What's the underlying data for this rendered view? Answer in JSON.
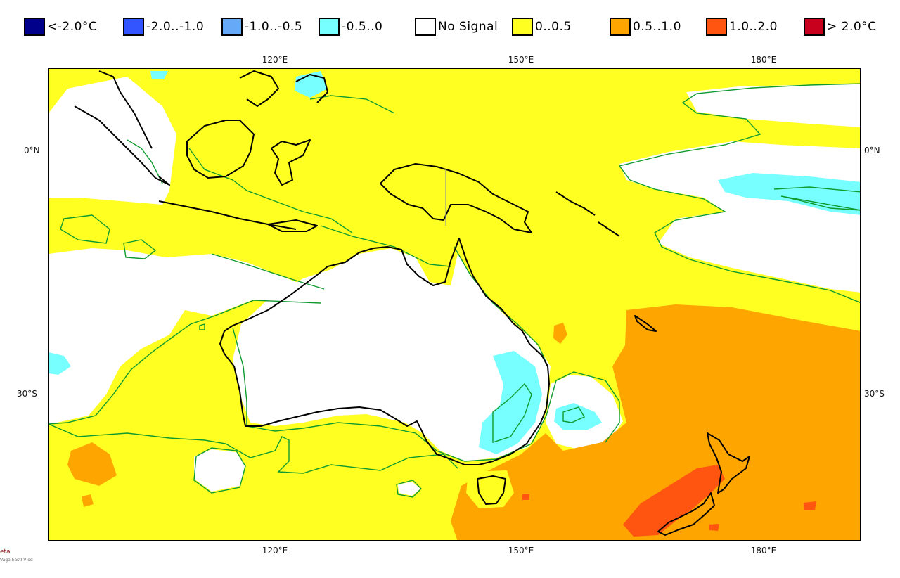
{
  "legend": {
    "items": [
      {
        "label": "<-2.0°C",
        "color": "#00008b"
      },
      {
        "label": "-2.0..-1.0",
        "color": "#3355ff"
      },
      {
        "label": "-1.0..-0.5",
        "color": "#66aaf7"
      },
      {
        "label": "-0.5..0",
        "color": "#77ffff"
      },
      {
        "label": "No Signal",
        "color": "#ffffff"
      },
      {
        "label": "0..0.5",
        "color": "#ffff22"
      },
      {
        "label": "0.5..1.0",
        "color": "#ffa500"
      },
      {
        "label": "1.0..2.0",
        "color": "#ff5511"
      },
      {
        "label": "> 2.0°C",
        "color": "#c8001e"
      }
    ]
  },
  "axes": {
    "lon_top": [
      "120°E",
      "150°E",
      "180°E"
    ],
    "lon_bottom": [
      "120°E",
      "150°E",
      "180°E"
    ],
    "lat_left": [
      "0°N",
      "30°S"
    ],
    "lat_right": [
      "0°N",
      "30°S"
    ]
  },
  "map": {
    "region": "Australia / South-West Pacific",
    "colors": {
      "warm_small": "#ffff22",
      "warm_mid": "#ffa500",
      "warm_high": "#ff5511",
      "cool_small": "#77ffff",
      "no_signal": "#ffffff",
      "contour": "#0f9a2e",
      "coast": "#000000"
    }
  },
  "credit": {
    "line1": "eta",
    "line2": "Vaga Eastl V od"
  }
}
